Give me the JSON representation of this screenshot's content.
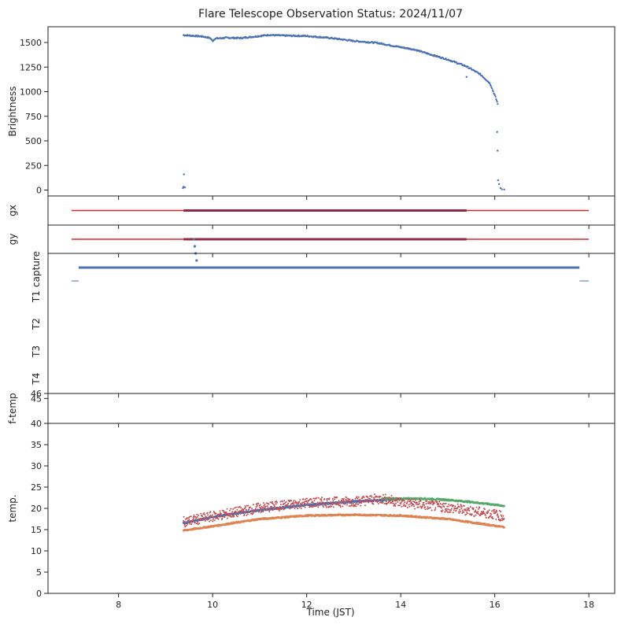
{
  "chart_data": {
    "title": "Flare Telescope Observation Status: 2024/11/07",
    "xlabel": "Time (JST)",
    "xlim": [
      6.5,
      18.55
    ],
    "xticks": [
      8,
      10,
      12,
      14,
      16,
      18
    ],
    "panels": [
      {
        "id": "brightness",
        "type": "scatter",
        "ylabel": "Brightness",
        "ylim": [
          -60,
          1660
        ],
        "yticks": [
          0,
          250,
          500,
          750,
          1000,
          1250,
          1500
        ],
        "series": [
          {
            "color": "#4c72b0",
            "curve": [
              [
                9.38,
                1575
              ],
              [
                9.6,
                1568
              ],
              [
                9.8,
                1560
              ],
              [
                9.95,
                1545
              ],
              [
                10.0,
                1515
              ],
              [
                10.05,
                1540
              ],
              [
                10.3,
                1548
              ],
              [
                10.6,
                1545
              ],
              [
                11.0,
                1566
              ],
              [
                11.2,
                1577
              ],
              [
                11.5,
                1570
              ],
              [
                12.0,
                1566
              ],
              [
                12.5,
                1546
              ],
              [
                13.0,
                1516
              ],
              [
                13.5,
                1496
              ],
              [
                14.0,
                1452
              ],
              [
                14.3,
                1428
              ],
              [
                14.6,
                1383
              ],
              [
                15.0,
                1327
              ],
              [
                15.4,
                1257
              ],
              [
                15.7,
                1174
              ],
              [
                15.9,
                1084
              ],
              [
                16.0,
                963
              ],
              [
                16.07,
                872
              ]
            ],
            "points": [
              [
                9.37,
                20
              ],
              [
                9.38,
                32
              ],
              [
                9.39,
                160
              ],
              [
                9.41,
                28
              ],
              [
                15.4,
                1150
              ],
              [
                16.05,
                590
              ],
              [
                16.06,
                400
              ],
              [
                16.07,
                100
              ],
              [
                16.09,
                60
              ],
              [
                16.12,
                20
              ],
              [
                16.15,
                8
              ],
              [
                16.2,
                5
              ]
            ]
          }
        ]
      },
      {
        "id": "gx",
        "type": "line",
        "ylabel": "gx",
        "series": [
          {
            "color": "#d62728",
            "x": [
              7.0,
              18.0
            ],
            "level": 0.5
          },
          {
            "color": "#8e2a44",
            "x": [
              9.38,
              15.4
            ],
            "level": 0.5
          }
        ]
      },
      {
        "id": "gy",
        "type": "line",
        "ylabel": "gy",
        "series": [
          {
            "color": "#d62728",
            "x": [
              7.0,
              18.0
            ],
            "level": 0.5
          },
          {
            "color": "#8e2a44",
            "x": [
              9.38,
              15.4
            ],
            "level": 0.5
          }
        ],
        "points": [
          [
            9.6,
            0.5
          ],
          [
            9.62,
            0.25
          ],
          [
            9.64,
            0.0
          ],
          [
            9.66,
            -0.25
          ]
        ]
      },
      {
        "id": "status",
        "type": "line",
        "ylabels": [
          "capture",
          "T1",
          "T2",
          "T3",
          "T4"
        ],
        "series": [
          {
            "color": "#4c72b0",
            "x": [
              7.15,
              17.8
            ],
            "row": "capture"
          },
          {
            "color": "#4c72b0",
            "x": [
              7.0,
              7.15
            ],
            "row": "T1"
          },
          {
            "color": "#4c72b0",
            "x": [
              17.8,
              18.0
            ],
            "row": "T1"
          }
        ]
      },
      {
        "id": "f-temp",
        "type": "scatter",
        "ylabel": "f-temp",
        "ylim": [
          40,
          46
        ],
        "yticks": [
          40,
          45,
          46
        ],
        "series": []
      },
      {
        "id": "temp",
        "type": "scatter",
        "ylabel": "temp.",
        "ylim": [
          0,
          40
        ],
        "yticks": [
          0,
          5,
          10,
          15,
          20,
          25,
          30,
          35
        ],
        "series": [
          {
            "color": "#4c72b0",
            "x0": 9.38,
            "x1": 14.0,
            "points": [
              [
                9.38,
                16.5
              ],
              [
                10.0,
                18.0
              ],
              [
                11.0,
                19.6
              ],
              [
                12.0,
                20.8
              ],
              [
                13.0,
                21.6
              ],
              [
                14.0,
                22.2
              ]
            ]
          },
          {
            "color": "#55a868",
            "x0": 13.6,
            "x1": 16.2,
            "points": [
              [
                13.6,
                22.3
              ],
              [
                14.5,
                22.3
              ],
              [
                15.0,
                22.0
              ],
              [
                15.5,
                21.5
              ],
              [
                16.2,
                20.6
              ]
            ]
          },
          {
            "color": "#dd8452",
            "x0": 9.38,
            "x1": 16.2,
            "points": [
              [
                9.38,
                14.8
              ],
              [
                10.0,
                15.8
              ],
              [
                11.0,
                17.5
              ],
              [
                12.0,
                18.3
              ],
              [
                13.0,
                18.5
              ],
              [
                14.0,
                18.3
              ],
              [
                15.0,
                17.5
              ],
              [
                16.2,
                15.6
              ]
            ]
          },
          {
            "color": "#c44e52",
            "x0": 9.38,
            "x1": 16.2,
            "spread": 1.2,
            "points": [
              [
                9.38,
                16.8
              ],
              [
                10.0,
                18.1
              ],
              [
                11.0,
                20.1
              ],
              [
                12.0,
                21.3
              ],
              [
                13.0,
                21.6
              ],
              [
                13.6,
                22.3
              ],
              [
                14.0,
                21.4
              ],
              [
                15.0,
                20.2
              ],
              [
                16.0,
                18.6
              ],
              [
                16.2,
                18.0
              ]
            ]
          }
        ]
      }
    ],
    "legend": "none",
    "grid": false
  }
}
